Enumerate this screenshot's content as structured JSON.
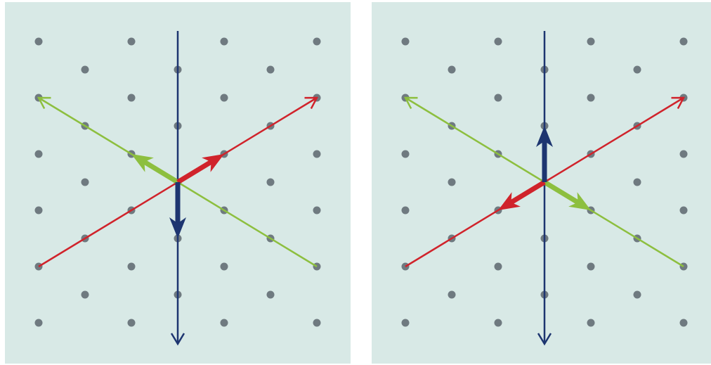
{
  "colors": {
    "background": "#ffffff",
    "panel": "#d8e9e6",
    "dot": "#6f7a80",
    "red": "#d0232b",
    "green": "#8dbf3f",
    "blue": "#1d3570"
  },
  "lattice": {
    "columns": 7,
    "rows": 11,
    "description_free": true
  },
  "panels": [
    {
      "id": "panel-left",
      "vectors": {
        "blue": "down",
        "red": "up-right",
        "green": "up-left"
      }
    },
    {
      "id": "panel-right",
      "vectors": {
        "blue": "up",
        "red": "down-left",
        "green": "down-right"
      }
    }
  ]
}
